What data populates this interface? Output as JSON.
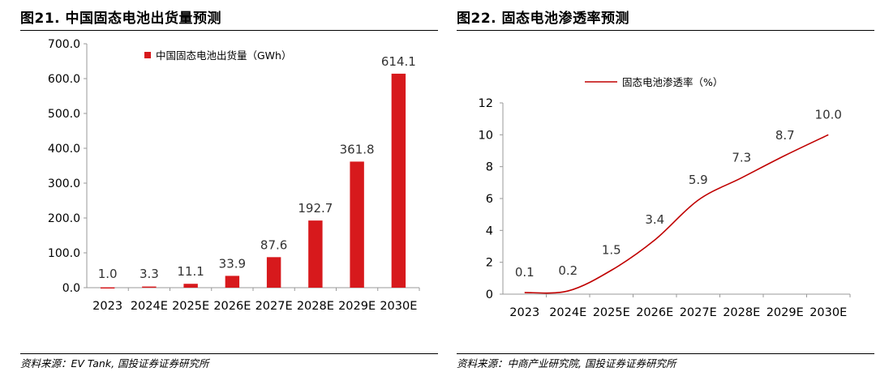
{
  "left": {
    "figure_title": "图21. 中国固态电池出货量预测",
    "source": "资料来源：EV Tank, 国投证券证券研究所"
  },
  "right": {
    "figure_title": "图22. 固态电池渗透率预测",
    "source": "资料来源：中商产业研究院, 国投证券证券研究所"
  },
  "chart_data": [
    {
      "type": "bar",
      "title": "",
      "xlabel": "",
      "ylabel": "",
      "categories": [
        "2023",
        "2024E",
        "2025E",
        "2026E",
        "2027E",
        "2028E",
        "2029E",
        "2030E"
      ],
      "series": [
        {
          "name": "中国固态电池出货量（GWh）",
          "values": [
            1.0,
            3.3,
            11.1,
            33.9,
            87.6,
            192.7,
            361.8,
            614.1
          ],
          "labels": [
            "1.0",
            "3.3",
            "11.1",
            "33.9",
            "87.6",
            "192.7",
            "361.8",
            "614.1"
          ],
          "color": "#d7191c"
        }
      ],
      "yticks": [
        "0.0",
        "100.0",
        "200.0",
        "300.0",
        "400.0",
        "500.0",
        "600.0",
        "700.0"
      ],
      "ylim": [
        0,
        700
      ],
      "grid": false,
      "legend_position": "top"
    },
    {
      "type": "line",
      "title": "",
      "xlabel": "",
      "ylabel": "",
      "categories": [
        "2023",
        "2024E",
        "2025E",
        "2026E",
        "2027E",
        "2028E",
        "2029E",
        "2030E"
      ],
      "series": [
        {
          "name": "固态电池渗透率（%）",
          "values": [
            0.1,
            0.2,
            1.5,
            3.4,
            5.9,
            7.3,
            8.7,
            10.0
          ],
          "labels": [
            "0.1",
            "0.2",
            "1.5",
            "3.4",
            "5.9",
            "7.3",
            "8.7",
            "10.0"
          ],
          "color": "#c00000"
        }
      ],
      "yticks": [
        "0",
        "2",
        "4",
        "6",
        "8",
        "10",
        "12"
      ],
      "ylim": [
        0,
        12
      ],
      "grid": false,
      "smooth": true,
      "legend_position": "top"
    }
  ]
}
